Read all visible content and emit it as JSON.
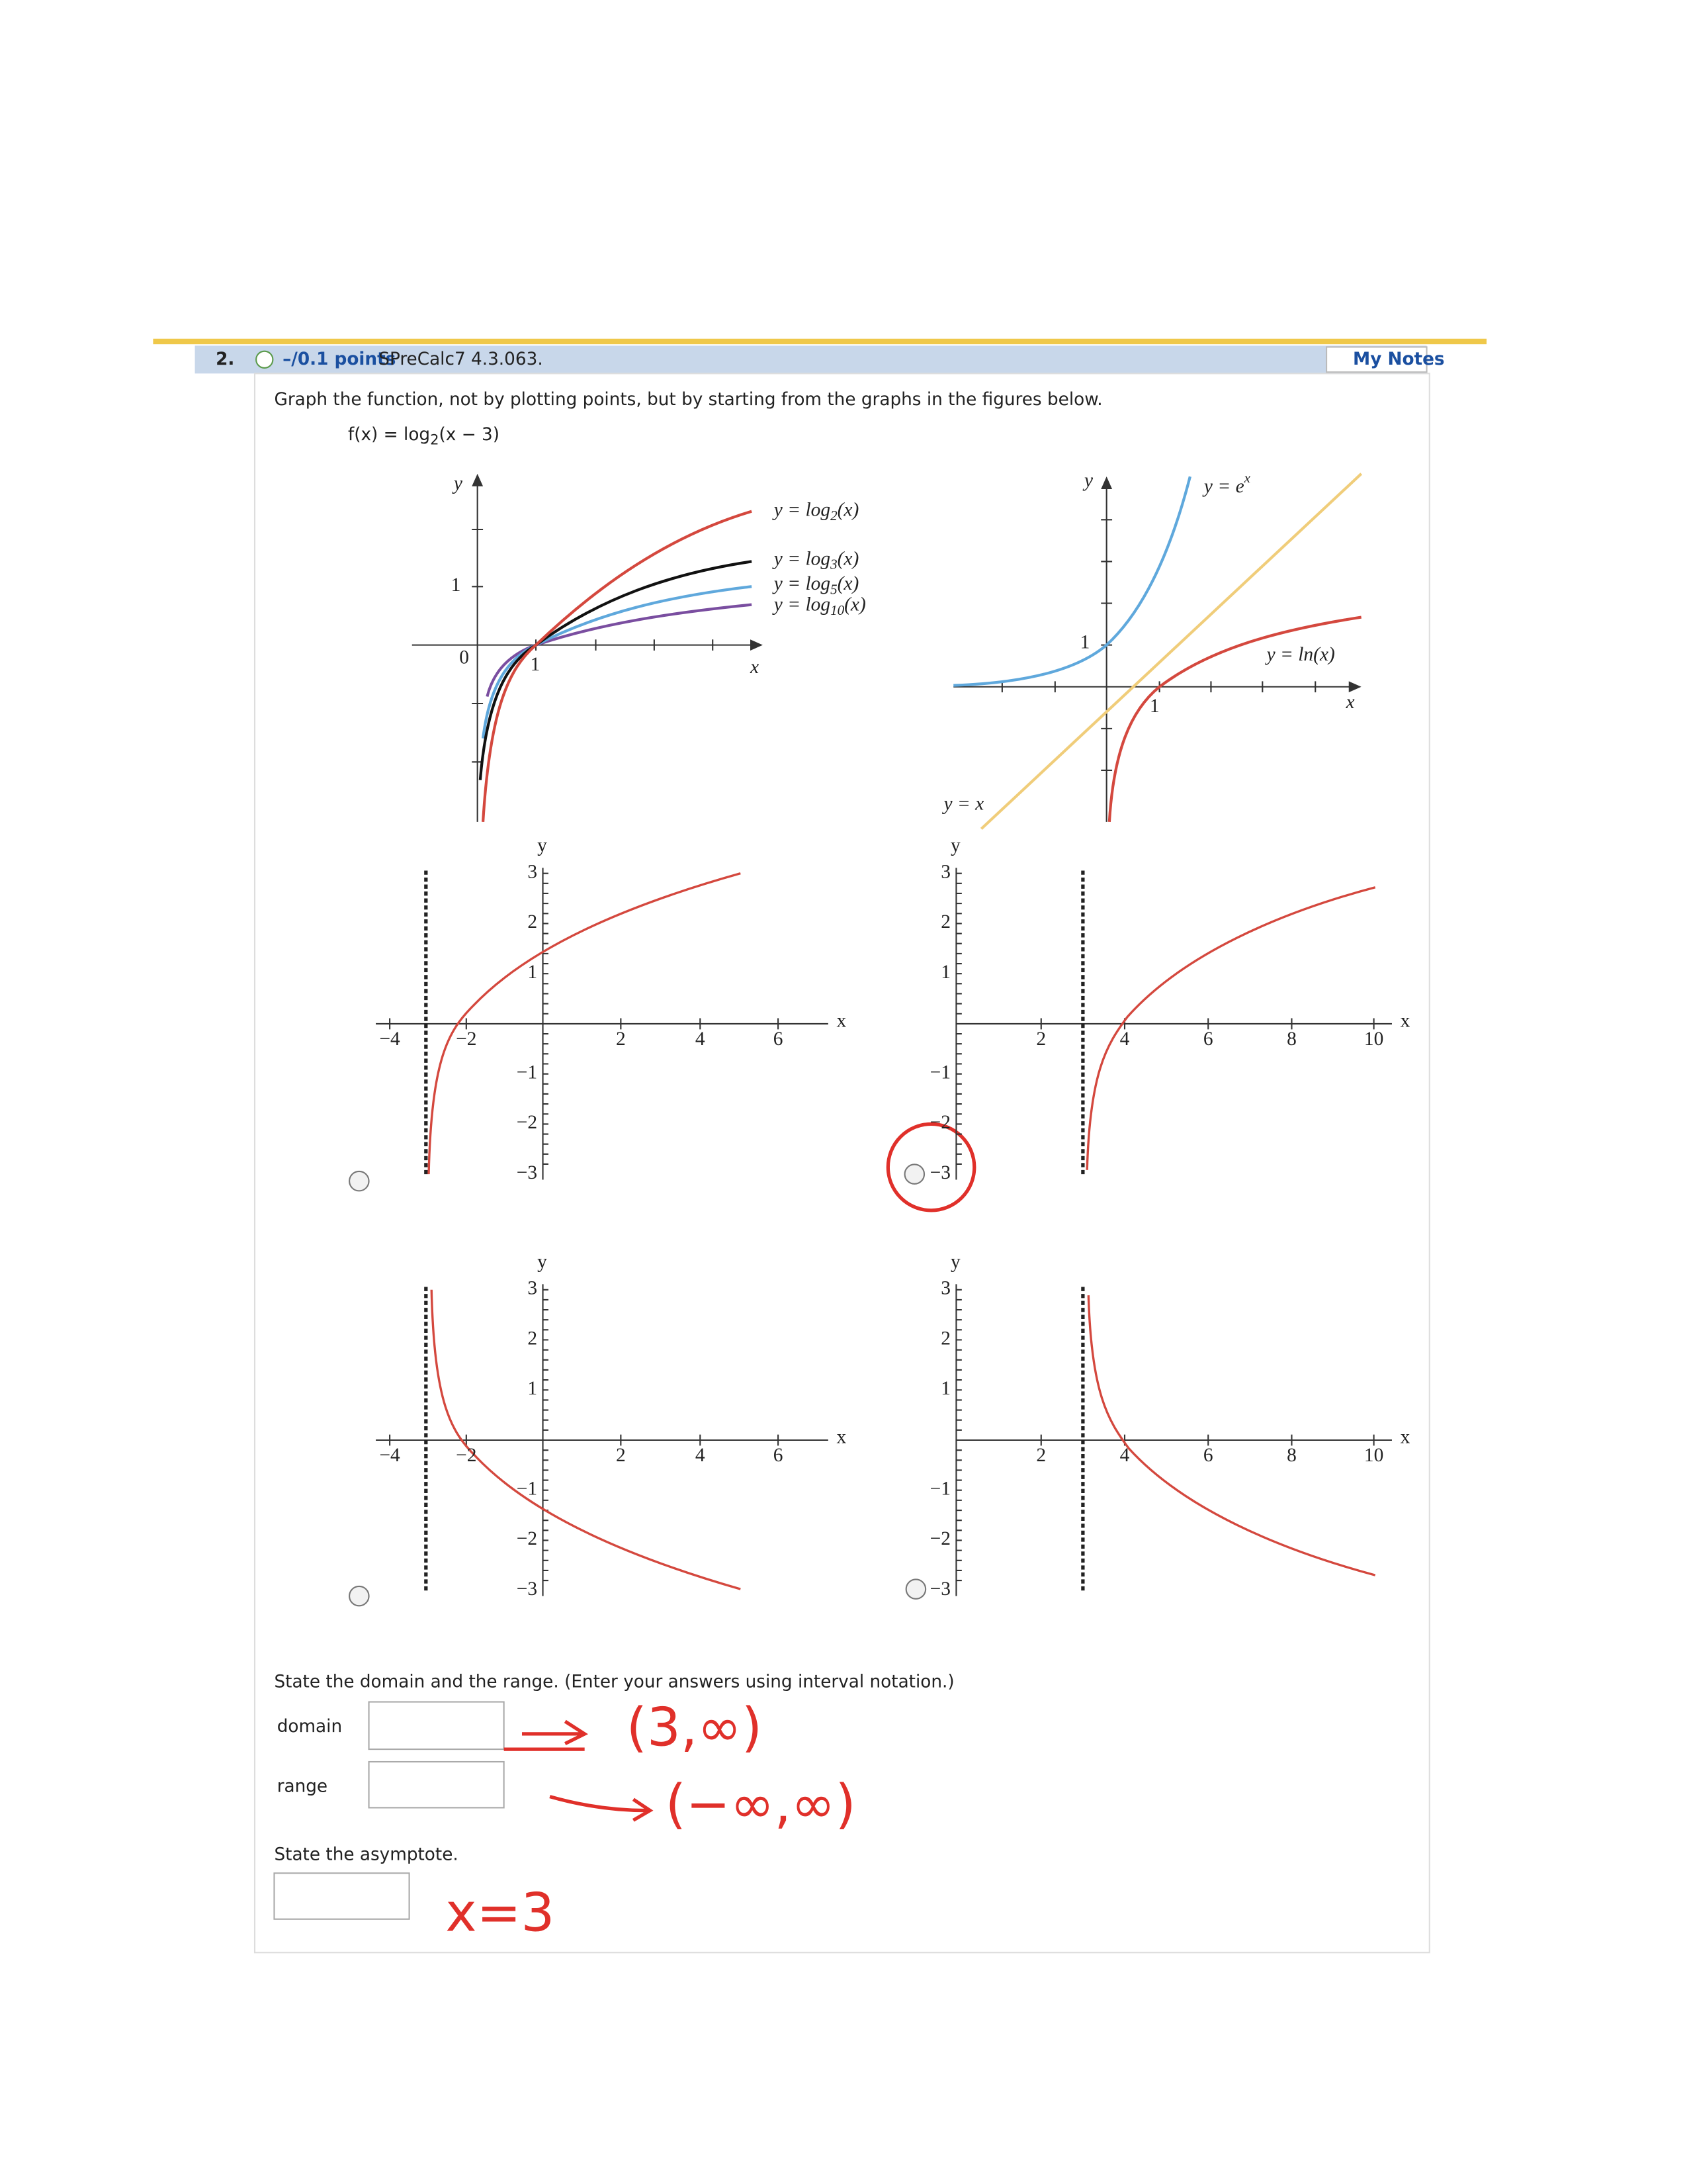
{
  "header": {
    "number": "2.",
    "points": "–/0.1 points",
    "source": "SPreCalc7 4.3.063.",
    "notes": "My Notes"
  },
  "question": {
    "prompt": "Graph the function, not by plotting points, but by starting from the graphs in the figures below.",
    "function": {
      "name": "f(x) = log",
      "base": "2",
      "argument": "(x − 3)"
    }
  },
  "reference_figures": [
    {
      "y_label": "y",
      "x_label": "x",
      "origin": "0",
      "x_tick": "1",
      "y_tick": "1",
      "curves": [
        {
          "prefix": "y = log",
          "base": "2",
          "suffix": "(x)"
        },
        {
          "prefix": "y = log",
          "base": "3",
          "suffix": "(x)"
        },
        {
          "prefix": "y = log",
          "base": "5",
          "suffix": "(x)"
        },
        {
          "prefix": "y = log",
          "base": "10",
          "suffix": "(x)"
        }
      ]
    },
    {
      "y_label": "y",
      "x_label": "x",
      "x_tick": "1",
      "y_tick": "1",
      "exp_label": {
        "prefix": "y = e",
        "power": "x"
      },
      "ln_label": "y = ln(x)",
      "identity_label": "y = x"
    }
  ],
  "options": [
    {
      "y_label": "y",
      "x_label": "x",
      "x_ticks": [
        "−4",
        "−2",
        "2",
        "4",
        "6"
      ],
      "y_ticks": [
        "3",
        "2",
        "1",
        "−1",
        "−2",
        "−3"
      ]
    },
    {
      "y_label": "y",
      "x_label": "x",
      "x_ticks": [
        "2",
        "4",
        "6",
        "8",
        "10"
      ],
      "y_ticks": [
        "3",
        "2",
        "1",
        "−1",
        "−2",
        "−3"
      ]
    },
    {
      "y_label": "y",
      "x_label": "x",
      "x_ticks": [
        "−4",
        "−2",
        "2",
        "4",
        "6"
      ],
      "y_ticks": [
        "3",
        "2",
        "1",
        "−1",
        "−2",
        "−3"
      ]
    },
    {
      "y_label": "y",
      "x_label": "x",
      "x_ticks": [
        "2",
        "4",
        "6",
        "8",
        "10"
      ],
      "y_ticks": [
        "3",
        "2",
        "1",
        "−1",
        "−2",
        "−3"
      ]
    }
  ],
  "answers": {
    "instruction": "State the domain and the range. (Enter your answers using interval notation.)",
    "domain_label": "domain",
    "range_label": "range",
    "asymptote_instruction": "State the asymptote."
  },
  "handwriting": {
    "domain": "(3,∞)",
    "range": "(−∞,∞)",
    "asymptote": "x=3"
  }
}
